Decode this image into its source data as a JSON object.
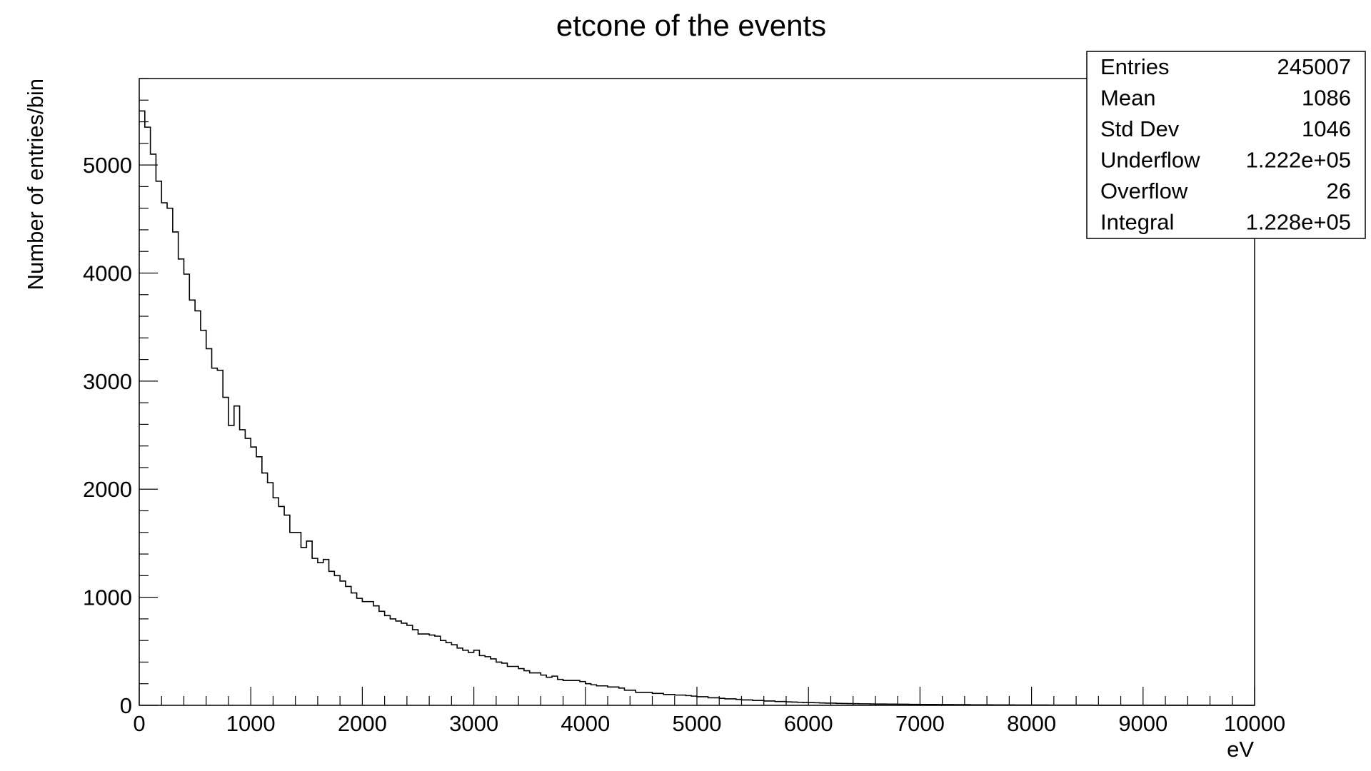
{
  "chart_data": {
    "type": "bar",
    "style": "step-histogram",
    "title": "etcone of the events",
    "xlabel": "eV",
    "ylabel": "Number of entries/bin",
    "xlim": [
      0,
      10000
    ],
    "ylim": [
      0,
      5800
    ],
    "bin_width": 50,
    "x_ticks": [
      "0",
      "1000",
      "2000",
      "3000",
      "4000",
      "5000",
      "6000",
      "7000",
      "8000",
      "9000",
      "10000"
    ],
    "y_ticks": [
      "0",
      "1000",
      "2000",
      "3000",
      "4000",
      "5000"
    ],
    "line_color": "#000000",
    "bin_low_edges": [
      0,
      50,
      100,
      150,
      200,
      250,
      300,
      350,
      400,
      450,
      500,
      550,
      600,
      650,
      700,
      750,
      800,
      850,
      900,
      950,
      1000,
      1050,
      1100,
      1150,
      1200,
      1250,
      1300,
      1350,
      1400,
      1450,
      1500,
      1550,
      1600,
      1650,
      1700,
      1750,
      1800,
      1850,
      1900,
      1950,
      2000,
      2050,
      2100,
      2150,
      2200,
      2250,
      2300,
      2350,
      2400,
      2450,
      2500,
      2550,
      2600,
      2650,
      2700,
      2750,
      2800,
      2850,
      2900,
      2950,
      3000,
      3050,
      3100,
      3150,
      3200,
      3250,
      3300,
      3350,
      3400,
      3450,
      3500,
      3550,
      3600,
      3650,
      3700,
      3750,
      3800,
      3850,
      3900,
      3950,
      4000,
      4050,
      4100,
      4150,
      4200,
      4250,
      4300,
      4350,
      4400,
      4450,
      4500,
      4550,
      4600,
      4650,
      4700,
      4750,
      4800,
      4850,
      4900,
      4950,
      5000,
      5050,
      5100,
      5150,
      5200,
      5250,
      5300,
      5350,
      5400,
      5450,
      5500,
      5550,
      5600,
      5650,
      5700,
      5750,
      5800,
      5850,
      5900,
      5950,
      6000,
      6050,
      6100,
      6150,
      6200,
      6250,
      6300,
      6350,
      6400,
      6450,
      6500,
      6550,
      6600,
      6650,
      6700,
      6750,
      6800,
      6850,
      6900,
      6950,
      7000,
      7050,
      7100,
      7150,
      7200,
      7250,
      7300,
      7350,
      7400,
      7450,
      7500,
      7550,
      7600,
      7650,
      7700,
      7750,
      7800,
      7850,
      7900,
      7950,
      8000,
      8050,
      8100,
      8150,
      8200,
      8250,
      8300,
      8350,
      8400,
      8450,
      8500,
      8550,
      8600,
      8650,
      8700,
      8750,
      8800,
      8850,
      8900,
      8950,
      9000,
      9050,
      9100,
      9150,
      9200,
      9250,
      9300,
      9350,
      9400,
      9450,
      9500,
      9550,
      9600,
      9650,
      9700,
      9750,
      9800,
      9850,
      9900,
      9950
    ],
    "values": [
      5500,
      5350,
      5100,
      4850,
      4650,
      4600,
      4380,
      4130,
      3990,
      3750,
      3650,
      3470,
      3300,
      3120,
      3100,
      2850,
      2590,
      2770,
      2550,
      2470,
      2390,
      2300,
      2150,
      2060,
      1920,
      1840,
      1760,
      1600,
      1600,
      1460,
      1520,
      1360,
      1320,
      1350,
      1240,
      1200,
      1150,
      1100,
      1040,
      990,
      960,
      960,
      920,
      870,
      830,
      800,
      780,
      760,
      740,
      700,
      660,
      660,
      650,
      640,
      600,
      580,
      560,
      530,
      510,
      490,
      510,
      460,
      450,
      430,
      400,
      390,
      360,
      360,
      340,
      320,
      300,
      300,
      280,
      260,
      270,
      240,
      230,
      230,
      230,
      220,
      200,
      190,
      180,
      180,
      170,
      170,
      160,
      140,
      140,
      120,
      120,
      120,
      110,
      110,
      100,
      100,
      95,
      95,
      90,
      85,
      80,
      80,
      70,
      70,
      65,
      60,
      60,
      55,
      50,
      50,
      45,
      45,
      40,
      40,
      35,
      35,
      32,
      30,
      28,
      26,
      25,
      24,
      22,
      20,
      20,
      18,
      17,
      16,
      15,
      14,
      14,
      13,
      12,
      12,
      11,
      11,
      10,
      10,
      9,
      9,
      8,
      8,
      8,
      7,
      7,
      7,
      6,
      6,
      6,
      5,
      5,
      5,
      5,
      4,
      4,
      4,
      4,
      3,
      3,
      3,
      3,
      3,
      3,
      2,
      2,
      2,
      2,
      2,
      2,
      2,
      2,
      1,
      1,
      1,
      1,
      1,
      1,
      1,
      1,
      1,
      1,
      1,
      1,
      1,
      1,
      1,
      1,
      1,
      1,
      1,
      1,
      1,
      1,
      1,
      1,
      1
    ],
    "stats_box": [
      {
        "label": "Entries",
        "value": "245007"
      },
      {
        "label": "Mean",
        "value": "1086"
      },
      {
        "label": "Std Dev",
        "value": "1046"
      },
      {
        "label": "Underflow",
        "value": "1.222e+05"
      },
      {
        "label": "Overflow",
        "value": "26"
      },
      {
        "label": "Integral",
        "value": "1.228e+05"
      }
    ]
  }
}
